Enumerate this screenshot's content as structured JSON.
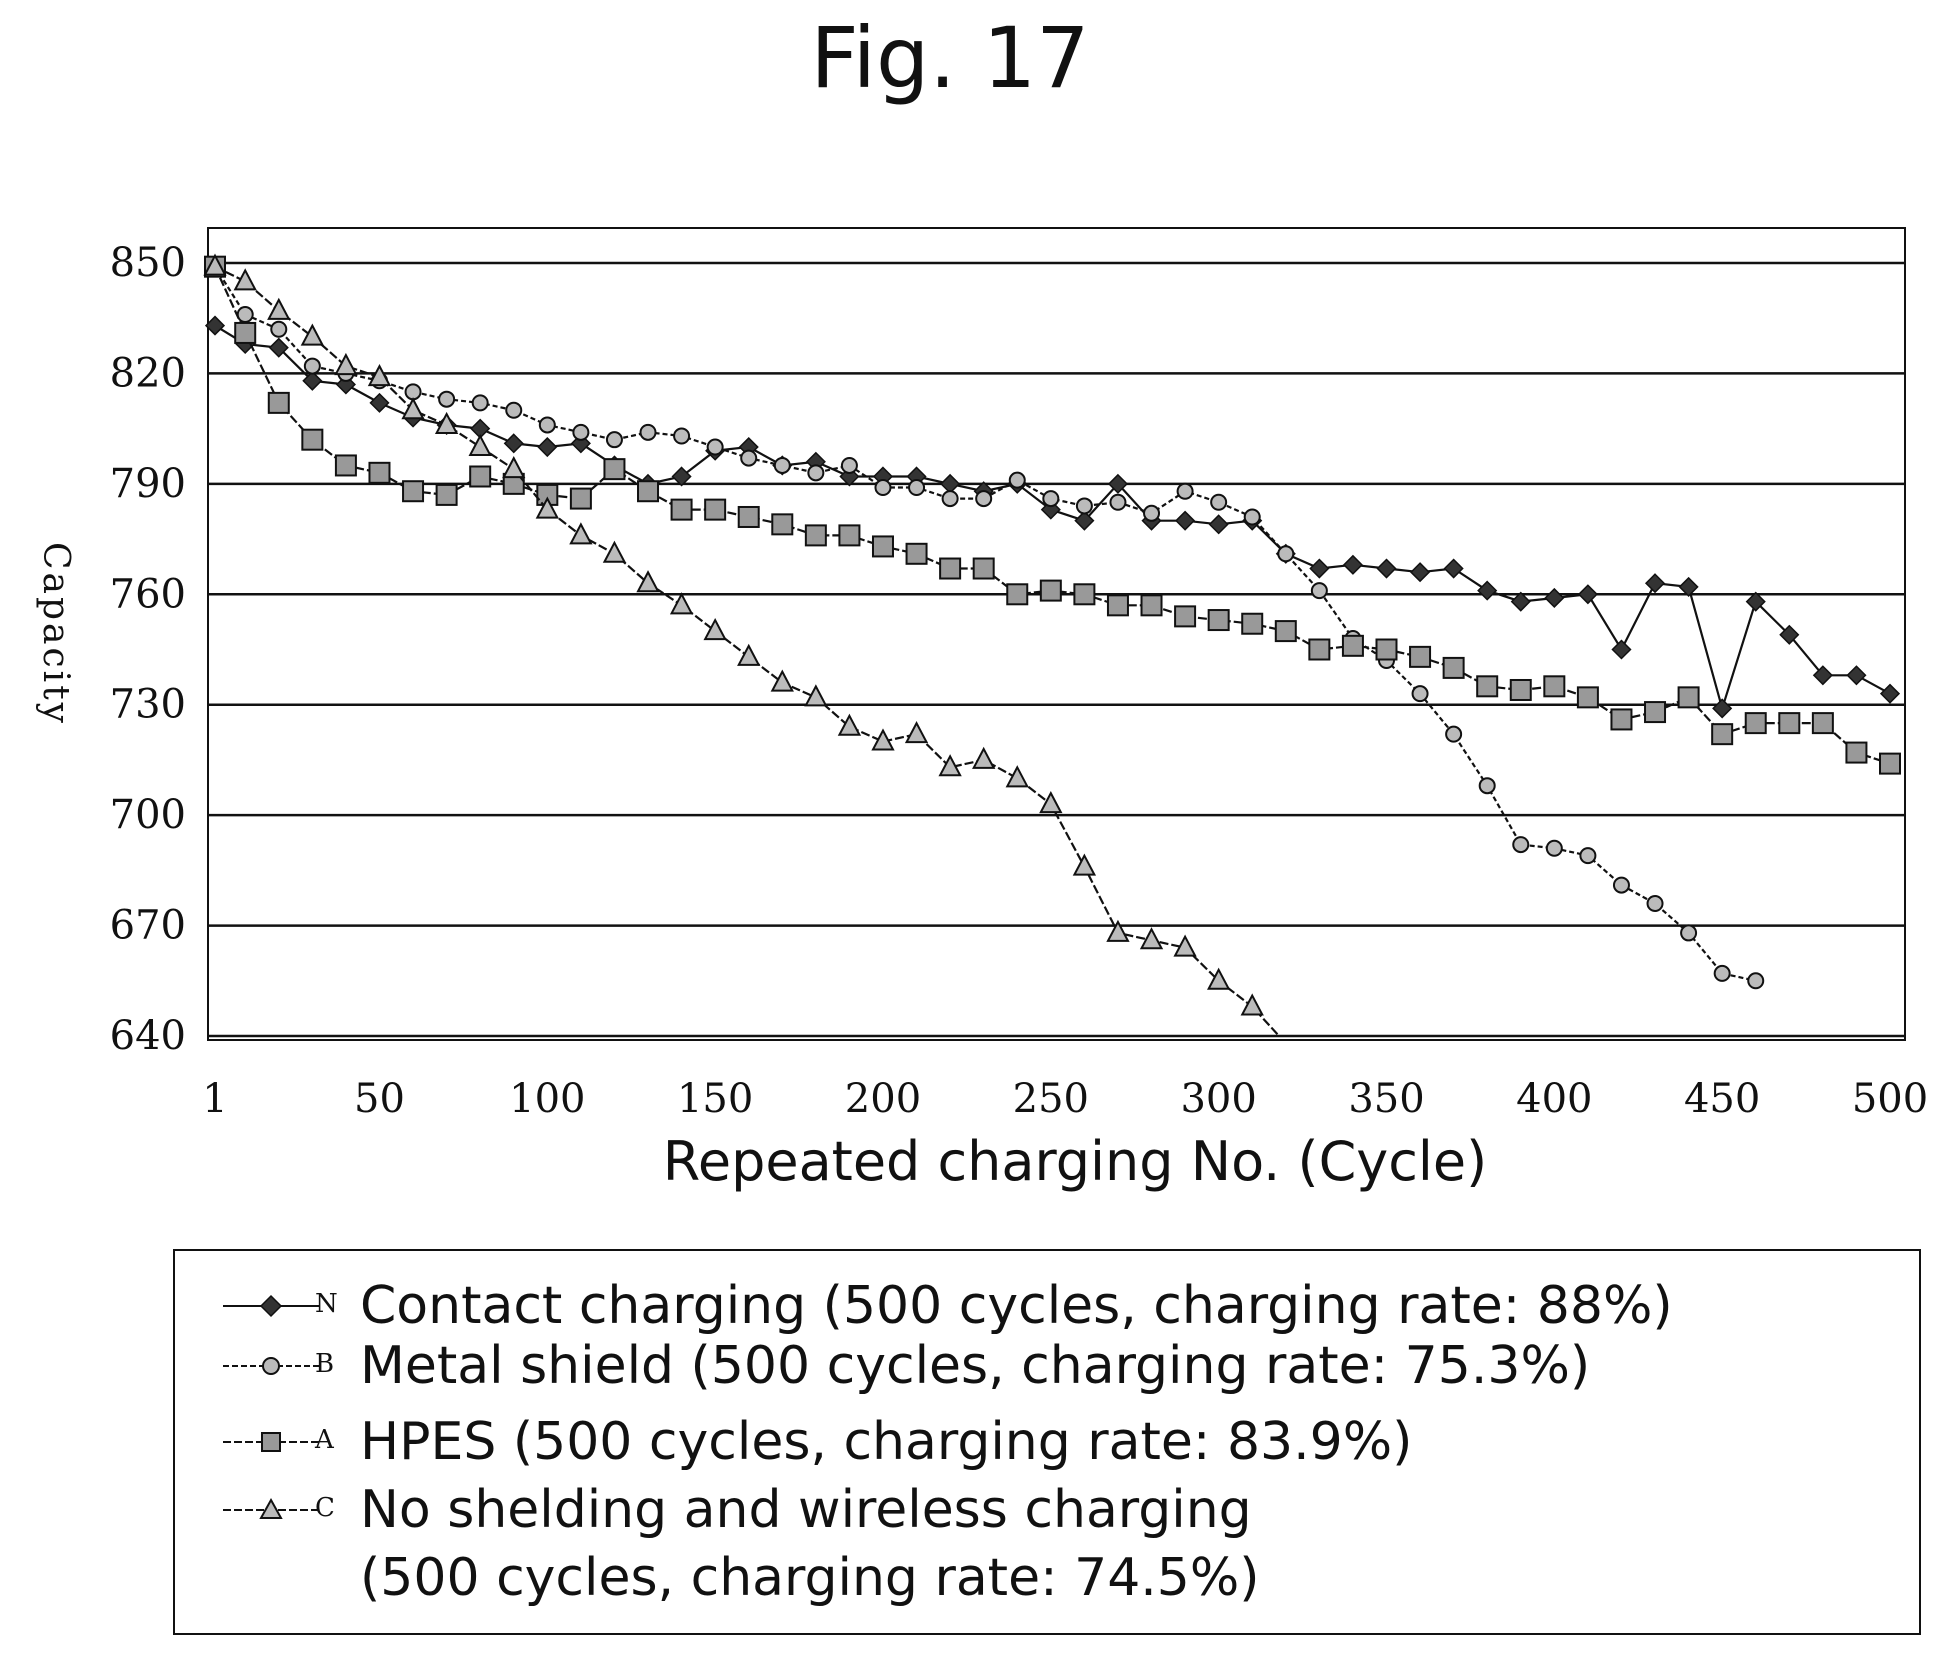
{
  "figure_label": "Fig. 17",
  "chart_data": {
    "type": "line",
    "xlabel": "Repeated charging No. (Cycle)",
    "ylabel": "Capacity",
    "xlim": [
      1,
      500
    ],
    "ylim": [
      640,
      850
    ],
    "x_ticks": [
      1,
      50,
      100,
      150,
      200,
      250,
      300,
      350,
      400,
      450,
      500
    ],
    "y_ticks": [
      640,
      670,
      700,
      730,
      760,
      790,
      820,
      850
    ],
    "grid": "horizontal",
    "legend_position": "below",
    "series": [
      {
        "name": "Contact charging (500 cycles, charging rate: 88%)",
        "letter": "N",
        "marker": "diamond",
        "x": [
          1,
          10,
          20,
          30,
          40,
          50,
          60,
          70,
          80,
          90,
          100,
          110,
          120,
          130,
          140,
          150,
          160,
          170,
          180,
          190,
          200,
          210,
          220,
          230,
          240,
          250,
          260,
          270,
          280,
          290,
          300,
          310,
          320,
          330,
          340,
          350,
          360,
          370,
          380,
          390,
          400,
          410,
          420,
          430,
          440,
          450,
          460,
          470,
          480,
          490,
          500
        ],
        "y": [
          833,
          828,
          827,
          818,
          817,
          812,
          808,
          806,
          805,
          801,
          800,
          801,
          795,
          790,
          792,
          799,
          800,
          795,
          796,
          792,
          792,
          792,
          790,
          788,
          790,
          783,
          780,
          790,
          780,
          780,
          779,
          780,
          771,
          767,
          768,
          767,
          766,
          767,
          761,
          758,
          759,
          760,
          745,
          763,
          762,
          729,
          758,
          749,
          738,
          738,
          733
        ]
      },
      {
        "name": "Metal shield (500 cycles, charging rate: 75.3%)",
        "letter": "B",
        "marker": "circle",
        "x": [
          1,
          10,
          20,
          30,
          40,
          50,
          60,
          70,
          80,
          90,
          100,
          110,
          120,
          130,
          140,
          150,
          160,
          170,
          180,
          190,
          200,
          210,
          220,
          230,
          240,
          250,
          260,
          270,
          280,
          290,
          300,
          310,
          320,
          330,
          340,
          350,
          360,
          370,
          380,
          390,
          400,
          410,
          420,
          430,
          440,
          450,
          460
        ],
        "y": [
          849,
          836,
          832,
          822,
          820,
          818,
          815,
          813,
          812,
          810,
          806,
          804,
          802,
          804,
          803,
          800,
          797,
          795,
          793,
          795,
          789,
          789,
          786,
          786,
          791,
          786,
          784,
          785,
          782,
          788,
          785,
          781,
          771,
          761,
          748,
          742,
          733,
          722,
          708,
          692,
          691,
          689,
          681,
          676,
          668,
          657,
          655
        ]
      },
      {
        "name": "HPES (500 cycles, charging rate: 83.9%)",
        "letter": "A",
        "marker": "square",
        "x": [
          1,
          10,
          20,
          30,
          40,
          50,
          60,
          70,
          80,
          90,
          100,
          110,
          120,
          130,
          140,
          150,
          160,
          170,
          180,
          190,
          200,
          210,
          220,
          230,
          240,
          250,
          260,
          270,
          280,
          290,
          300,
          310,
          320,
          330,
          340,
          350,
          360,
          370,
          380,
          390,
          400,
          410,
          420,
          430,
          440,
          450,
          460,
          470,
          480,
          490,
          500
        ],
        "y": [
          849,
          831,
          812,
          802,
          795,
          793,
          788,
          787,
          792,
          790,
          787,
          786,
          794,
          788,
          783,
          783,
          781,
          779,
          776,
          776,
          773,
          771,
          767,
          767,
          760,
          761,
          760,
          757,
          757,
          754,
          753,
          752,
          750,
          745,
          746,
          745,
          743,
          740,
          735,
          734,
          735,
          732,
          726,
          728,
          732,
          722,
          725,
          725,
          725,
          717,
          714
        ]
      },
      {
        "name": "No shelding and wireless charging (500 cycles, charging rate: 74.5%)",
        "name_lines": [
          "No shelding and wireless charging",
          "(500 cycles, charging rate: 74.5%)"
        ],
        "letter": "C",
        "marker": "triangle",
        "x": [
          1,
          10,
          20,
          30,
          40,
          50,
          60,
          70,
          80,
          90,
          100,
          110,
          120,
          130,
          140,
          150,
          160,
          170,
          180,
          190,
          200,
          210,
          220,
          230,
          240,
          250,
          260,
          270,
          280,
          290,
          300,
          310,
          318
        ],
        "y": [
          849,
          845,
          837,
          830,
          822,
          819,
          810,
          806,
          800,
          794,
          783,
          776,
          771,
          763,
          757,
          750,
          743,
          736,
          732,
          724,
          720,
          722,
          713,
          715,
          710,
          703,
          686,
          668,
          666,
          664,
          655,
          648,
          640
        ]
      }
    ]
  }
}
